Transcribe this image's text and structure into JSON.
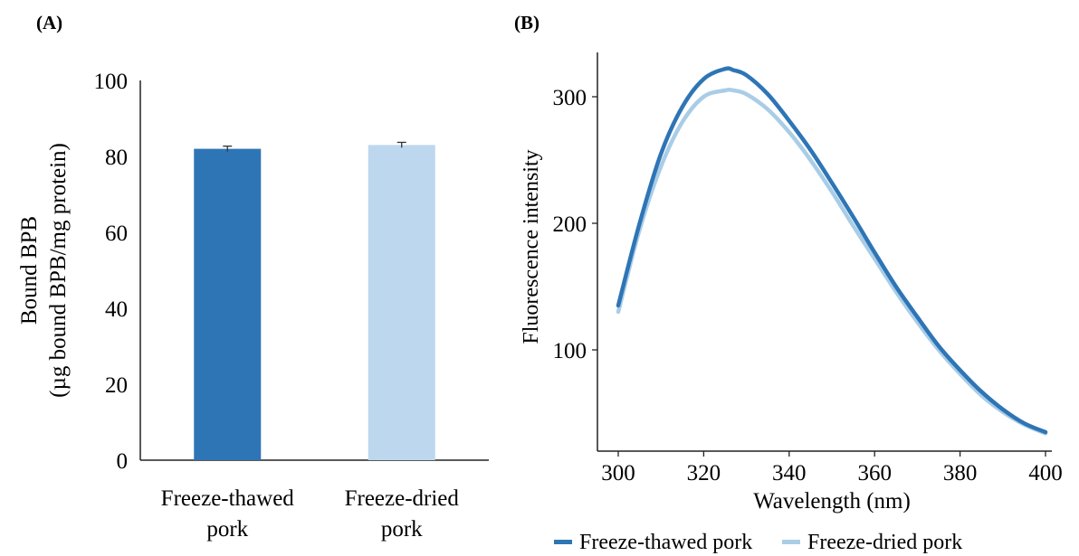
{
  "panels": {
    "a_label": "(A)",
    "b_label": "(B)"
  },
  "chart_data": [
    {
      "type": "bar",
      "categories": [
        [
          "Freeze-thawed",
          "pork"
        ],
        [
          "Freeze-dried",
          "pork"
        ]
      ],
      "values": [
        82,
        83
      ],
      "errors": [
        0.7,
        0.7
      ],
      "colors": [
        "#2e75b6",
        "#bdd7ee"
      ],
      "ylabel_line1": "Bound BPB",
      "ylabel_line2": "(µg bound BPB/mg protein)",
      "xlabel": "",
      "ylim": [
        0,
        100
      ],
      "yticks": [
        0,
        20,
        40,
        60,
        80,
        100
      ],
      "grid": false
    },
    {
      "type": "line",
      "xlabel": "Wavelength (nm)",
      "ylabel": "Fluorescence intensity",
      "xlim": [
        300,
        400
      ],
      "ylim": [
        20,
        335
      ],
      "xticks": [
        300,
        320,
        340,
        360,
        380,
        400
      ],
      "yticks": [
        100,
        200,
        300
      ],
      "grid": false,
      "legend_position": "bottom",
      "x": [
        300,
        305,
        310,
        315,
        320,
        325,
        327,
        330,
        335,
        340,
        345,
        350,
        355,
        360,
        365,
        370,
        375,
        380,
        385,
        390,
        395,
        400
      ],
      "series": [
        {
          "name": "Freeze-thawed pork",
          "color": "#2e75b6",
          "values": [
            135,
            200,
            255,
            292,
            314,
            322,
            321,
            317,
            302,
            281,
            258,
            232,
            205,
            177,
            150,
            126,
            103,
            84,
            67,
            53,
            42,
            35
          ]
        },
        {
          "name": "Freeze-dried pork",
          "color": "#a9cde6",
          "values": [
            130,
            195,
            245,
            280,
            300,
            305,
            305,
            302,
            290,
            272,
            250,
            225,
            198,
            172,
            146,
            122,
            100,
            81,
            64,
            51,
            41,
            34
          ]
        }
      ]
    }
  ]
}
